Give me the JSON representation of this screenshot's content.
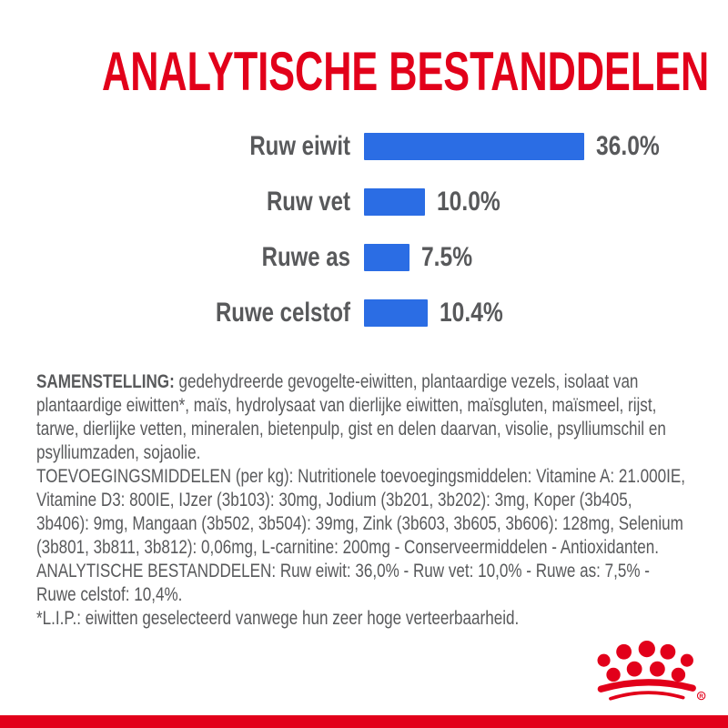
{
  "page": {
    "title": "ANALYTISCHE BESTANDDELEN"
  },
  "chart_data": {
    "type": "bar",
    "orientation": "horizontal",
    "title": "ANALYTISCHE BESTANDDELEN",
    "categories": [
      "Ruw eiwit",
      "Ruw vet",
      "Ruwe as",
      "Ruwe celstof"
    ],
    "values": [
      36.0,
      10.0,
      7.5,
      10.4
    ],
    "value_labels": [
      "36.0%",
      "10.0%",
      "7.5%",
      "10.4%"
    ],
    "unit": "%",
    "xlim": [
      0,
      36
    ],
    "grid": false,
    "legend": false,
    "bar_color": "#2B6DE4",
    "label_color": "#58595B"
  },
  "document": {
    "paragraphs": [
      {
        "bold_lead": "SAMENSTELLING:",
        "text": "gedehydreerde gevogelte-eiwitten, plantaardige vezels, isolaat van plantaardige eiwitten*, maïs, hydrolysaat van dierlijke eiwitten, maïsgluten, maïsmeel, rijst, tarwe, dierlijke vetten, mineralen, bietenpulp, gist en delen daarvan, visolie, psylliumschil en psylliumzaden, sojaolie."
      },
      {
        "bold_lead": "",
        "text": "TOEVOEGINGSMIDDELEN (per kg): Nutritionele toevoegingsmiddelen: Vitamine A: 21.000IE, Vitamine D3: 800IE, IJzer (3b103): 30mg, Jodium (3b201, 3b202): 3mg, Koper (3b405, 3b406): 9mg, Mangaan (3b502, 3b504): 39mg, Zink (3b603, 3b605, 3b606): 128mg, Selenium (3b801, 3b811, 3b812): 0,06mg, L-carnitine: 200mg - Conserveermiddelen - Antioxidanten."
      },
      {
        "bold_lead": "",
        "text": "ANALYTISCHE BESTANDDELEN: Ruw eiwit: 36,0% - Ruw vet: 10,0% - Ruwe as: 7,5% - Ruwe celstof: 10,4%."
      },
      {
        "bold_lead": "",
        "text": "*L.I.P.: eiwitten geselecteerd vanwege hun zeer hoge verteerbaarheid."
      }
    ]
  },
  "branding": {
    "logo": "royal-canin-crown",
    "registered_mark": "®",
    "logo_color": "#E2001A"
  },
  "colors": {
    "accent_red": "#E2001A",
    "bar_blue": "#2B6DE4",
    "text_gray": "#58595B"
  }
}
